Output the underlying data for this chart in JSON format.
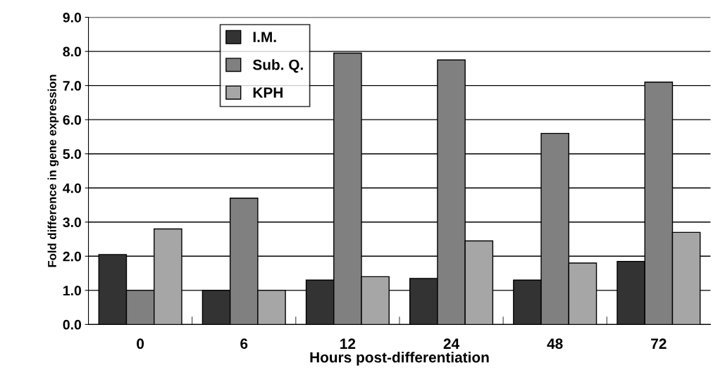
{
  "chart_data": {
    "type": "bar",
    "xlabel": "Hours post-differentiation",
    "ylabel": "Fold difference in gene expression",
    "categories": [
      "0",
      "6",
      "12",
      "24",
      "48",
      "72"
    ],
    "series": [
      {
        "name": "I.M.",
        "color": "#333333",
        "values": [
          2.05,
          1.0,
          1.3,
          1.35,
          1.3,
          1.85
        ]
      },
      {
        "name": "Sub. Q.",
        "color": "#808080",
        "values": [
          1.0,
          3.7,
          7.95,
          7.75,
          5.6,
          7.1
        ]
      },
      {
        "name": "KPH",
        "color": "#a6a6a6",
        "values": [
          2.8,
          1.0,
          1.4,
          2.45,
          1.8,
          2.7
        ]
      }
    ],
    "ylim": [
      0,
      9
    ],
    "yticks": [
      {
        "value": 0,
        "label": "0.0"
      },
      {
        "value": 1,
        "label": "1.0"
      },
      {
        "value": 2,
        "label": "2.0"
      },
      {
        "value": 3,
        "label": "3.0"
      },
      {
        "value": 4,
        "label": "4.0"
      },
      {
        "value": 5,
        "label": "5.0"
      },
      {
        "value": 6,
        "label": "6.0"
      },
      {
        "value": 7,
        "label": "7.0"
      },
      {
        "value": 8,
        "label": "8.0"
      },
      {
        "value": 9,
        "label": "9.0"
      }
    ],
    "grid": "y",
    "legend": "top left"
  }
}
